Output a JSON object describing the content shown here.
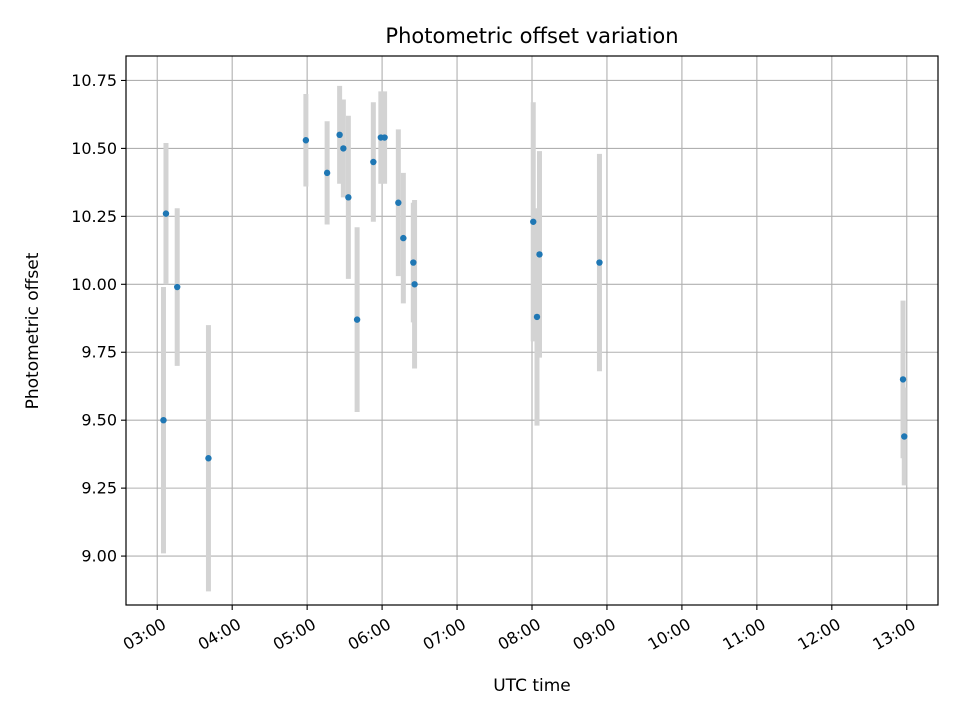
{
  "chart_data": {
    "type": "scatter",
    "title": "Photometric offset variation",
    "xlabel": "UTC time",
    "ylabel": "Photometric offset",
    "x_ticks": [
      "03:00",
      "04:00",
      "05:00",
      "06:00",
      "07:00",
      "08:00",
      "09:00",
      "10:00",
      "11:00",
      "12:00",
      "13:00"
    ],
    "y_ticks": [
      "9.00",
      "9.25",
      "9.50",
      "9.75",
      "10.00",
      "10.25",
      "10.50",
      "10.75"
    ],
    "xlim": [
      "02:35",
      "13:25"
    ],
    "ylim": [
      8.82,
      10.84
    ],
    "grid": true,
    "marker_color": "#1f77b4",
    "errorbar_color": "#d3d3d3",
    "points": [
      {
        "x": "03:05",
        "y": 9.5,
        "err": 0.49
      },
      {
        "x": "03:07",
        "y": 10.26,
        "err": 0.26
      },
      {
        "x": "03:16",
        "y": 9.99,
        "err": 0.29
      },
      {
        "x": "03:41",
        "y": 9.36,
        "err": 0.49
      },
      {
        "x": "04:59",
        "y": 10.53,
        "err": 0.17
      },
      {
        "x": "05:16",
        "y": 10.41,
        "err": 0.19
      },
      {
        "x": "05:26",
        "y": 10.55,
        "err": 0.18
      },
      {
        "x": "05:29",
        "y": 10.5,
        "err": 0.18
      },
      {
        "x": "05:33",
        "y": 10.32,
        "err": 0.3
      },
      {
        "x": "05:40",
        "y": 9.87,
        "err": 0.34
      },
      {
        "x": "05:53",
        "y": 10.45,
        "err": 0.22
      },
      {
        "x": "05:59",
        "y": 10.54,
        "err": 0.17
      },
      {
        "x": "06:02",
        "y": 10.54,
        "err": 0.17
      },
      {
        "x": "06:13",
        "y": 10.3,
        "err": 0.27
      },
      {
        "x": "06:17",
        "y": 10.17,
        "err": 0.24
      },
      {
        "x": "06:25",
        "y": 10.08,
        "err": 0.22
      },
      {
        "x": "06:26",
        "y": 10.0,
        "err": 0.31
      },
      {
        "x": "08:01",
        "y": 10.23,
        "err": 0.44
      },
      {
        "x": "08:04",
        "y": 9.88,
        "err": 0.4
      },
      {
        "x": "08:06",
        "y": 10.11,
        "err": 0.38
      },
      {
        "x": "08:54",
        "y": 10.08,
        "err": 0.4
      },
      {
        "x": "12:57",
        "y": 9.65,
        "err": 0.29
      },
      {
        "x": "12:58",
        "y": 9.44,
        "err": 0.18
      }
    ]
  }
}
